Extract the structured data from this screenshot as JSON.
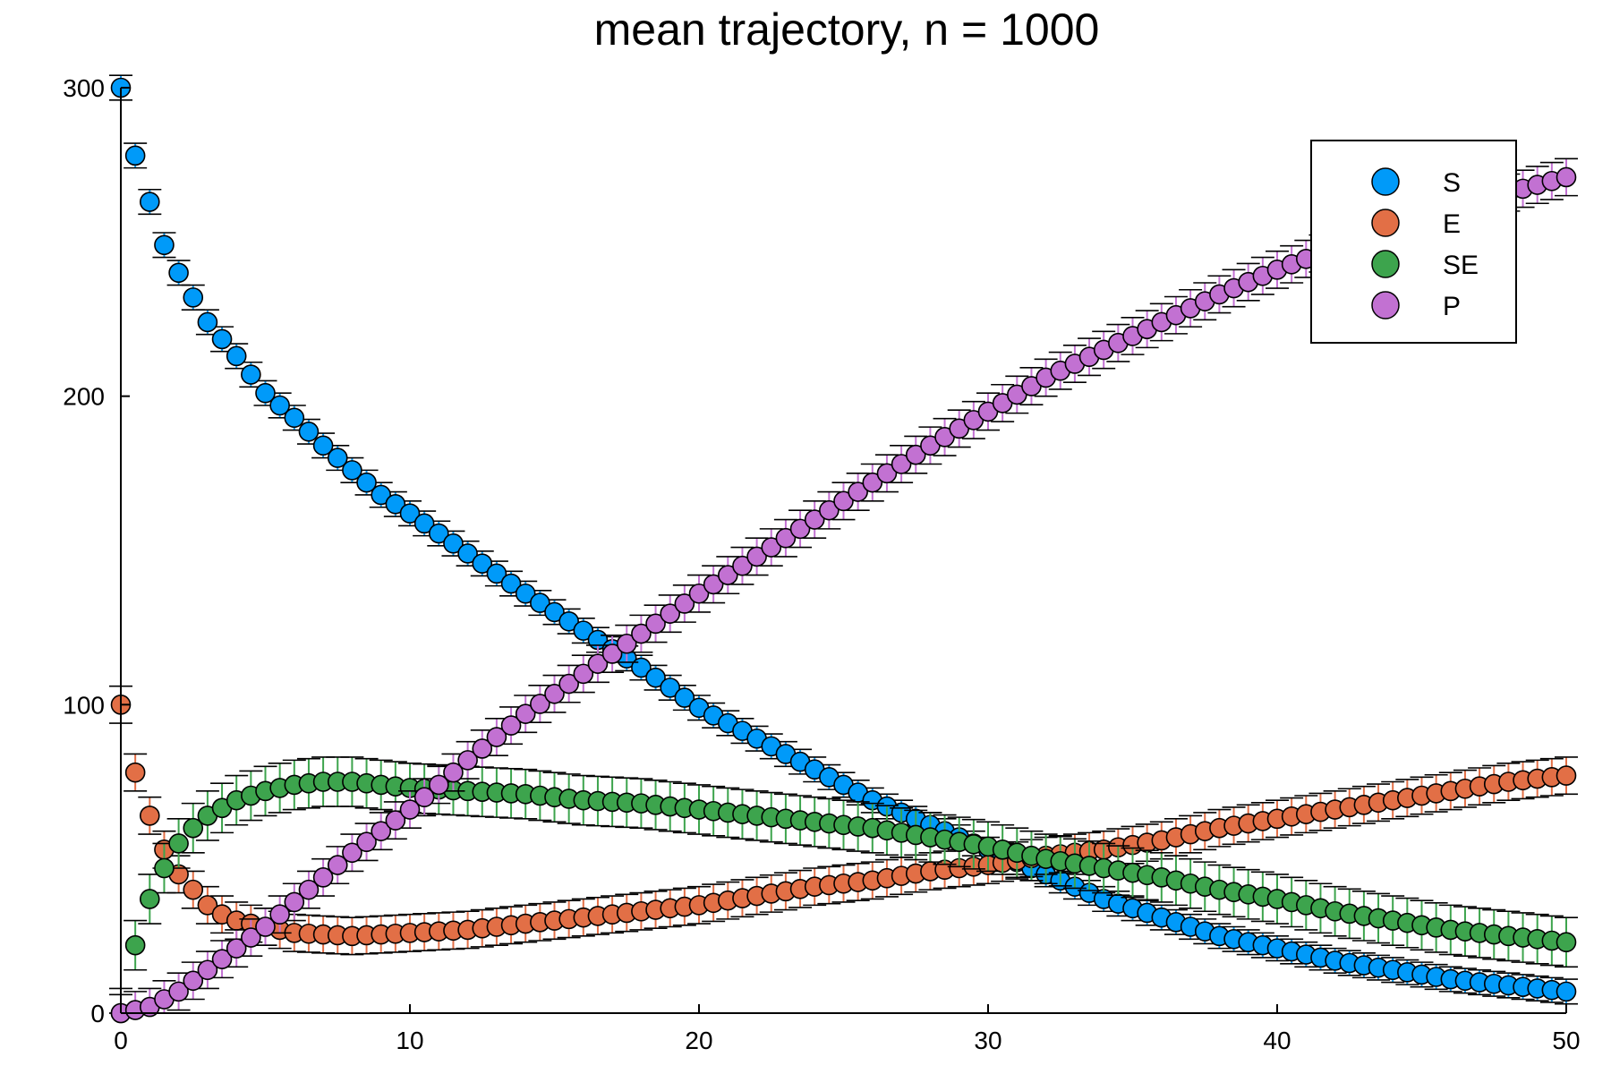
{
  "chart_data": {
    "type": "scatter",
    "title": "mean trajectory, n = 1000",
    "xlabel": "",
    "ylabel": "",
    "xlim": [
      0,
      50
    ],
    "ylim": [
      0,
      300
    ],
    "x_ticks": [
      "0",
      "10",
      "20",
      "30",
      "40",
      "50"
    ],
    "y_ticks": [
      "0",
      "100",
      "200",
      "300"
    ],
    "grid": false,
    "legend_position": "top-right",
    "error_bars": true,
    "x_step": 0.5,
    "n_points": 101,
    "series": [
      {
        "name": "S",
        "color": "#009af9",
        "err": 4,
        "anchors": [
          [
            0,
            300
          ],
          [
            0.5,
            278
          ],
          [
            1,
            263
          ],
          [
            1.5,
            249
          ],
          [
            2,
            240
          ],
          [
            3,
            224
          ],
          [
            4,
            213
          ],
          [
            5,
            201
          ],
          [
            6,
            193
          ],
          [
            7,
            184
          ],
          [
            8,
            176
          ],
          [
            9,
            168
          ],
          [
            10,
            162
          ],
          [
            12,
            149
          ],
          [
            14,
            136
          ],
          [
            16,
            124
          ],
          [
            17,
            118
          ],
          [
            18,
            112
          ],
          [
            20,
            99
          ],
          [
            22,
            89
          ],
          [
            24,
            79
          ],
          [
            26,
            69
          ],
          [
            28,
            61
          ],
          [
            30,
            53
          ],
          [
            32,
            45
          ],
          [
            34,
            37
          ],
          [
            36,
            31
          ],
          [
            38,
            25
          ],
          [
            40,
            21
          ],
          [
            42,
            17
          ],
          [
            44,
            14
          ],
          [
            46,
            11
          ],
          [
            48,
            9
          ],
          [
            50,
            7
          ]
        ]
      },
      {
        "name": "E",
        "color": "#e26f46",
        "err": 6,
        "anchors": [
          [
            0,
            100
          ],
          [
            0.5,
            78
          ],
          [
            1,
            64
          ],
          [
            1.5,
            53
          ],
          [
            2,
            45
          ],
          [
            2.5,
            40
          ],
          [
            3,
            35
          ],
          [
            3.5,
            32
          ],
          [
            4,
            30
          ],
          [
            5,
            28
          ],
          [
            6,
            26
          ],
          [
            8,
            25
          ],
          [
            10,
            26
          ],
          [
            12,
            27
          ],
          [
            14,
            29
          ],
          [
            16,
            31
          ],
          [
            18,
            33
          ],
          [
            20,
            35
          ],
          [
            22,
            38
          ],
          [
            24,
            41
          ],
          [
            26,
            43
          ],
          [
            28,
            46
          ],
          [
            30,
            48
          ],
          [
            32,
            51
          ],
          [
            34,
            53
          ],
          [
            36,
            56
          ],
          [
            38,
            60
          ],
          [
            40,
            63
          ],
          [
            42,
            66
          ],
          [
            44,
            69
          ],
          [
            46,
            72
          ],
          [
            48,
            75
          ],
          [
            50,
            77
          ]
        ]
      },
      {
        "name": "SE",
        "color": "#3da44d",
        "err": 8,
        "anchors": [
          [
            0,
            0
          ],
          [
            0.5,
            22
          ],
          [
            1,
            37
          ],
          [
            1.5,
            47
          ],
          [
            2,
            55
          ],
          [
            2.5,
            60
          ],
          [
            3,
            64
          ],
          [
            4,
            69
          ],
          [
            5,
            72
          ],
          [
            6,
            74
          ],
          [
            7,
            75
          ],
          [
            8,
            75
          ],
          [
            9,
            74
          ],
          [
            10,
            73
          ],
          [
            12,
            72
          ],
          [
            14,
            71
          ],
          [
            16,
            69
          ],
          [
            18,
            68
          ],
          [
            20,
            66
          ],
          [
            22,
            64
          ],
          [
            24,
            62
          ],
          [
            26,
            60
          ],
          [
            28,
            57
          ],
          [
            30,
            54
          ],
          [
            32,
            50
          ],
          [
            34,
            47
          ],
          [
            36,
            44
          ],
          [
            38,
            40
          ],
          [
            40,
            37
          ],
          [
            42,
            33
          ],
          [
            44,
            30
          ],
          [
            46,
            27
          ],
          [
            48,
            25
          ],
          [
            50,
            23
          ]
        ]
      },
      {
        "name": "P",
        "color": "#c271d2",
        "err": 6,
        "anchors": [
          [
            0,
            0
          ],
          [
            1,
            2
          ],
          [
            2,
            7
          ],
          [
            3,
            14
          ],
          [
            4,
            21
          ],
          [
            5,
            28
          ],
          [
            6,
            36
          ],
          [
            7,
            44
          ],
          [
            8,
            52
          ],
          [
            9,
            59
          ],
          [
            10,
            66
          ],
          [
            12,
            82
          ],
          [
            14,
            97
          ],
          [
            16,
            110
          ],
          [
            18,
            123
          ],
          [
            20,
            136
          ],
          [
            22,
            148
          ],
          [
            24,
            160
          ],
          [
            26,
            172
          ],
          [
            28,
            184
          ],
          [
            30,
            195
          ],
          [
            32,
            206
          ],
          [
            34,
            215
          ],
          [
            36,
            224
          ],
          [
            38,
            233
          ],
          [
            40,
            241
          ],
          [
            42,
            248
          ],
          [
            44,
            255
          ],
          [
            46,
            261
          ],
          [
            48,
            266
          ],
          [
            50,
            271
          ]
        ]
      }
    ]
  }
}
